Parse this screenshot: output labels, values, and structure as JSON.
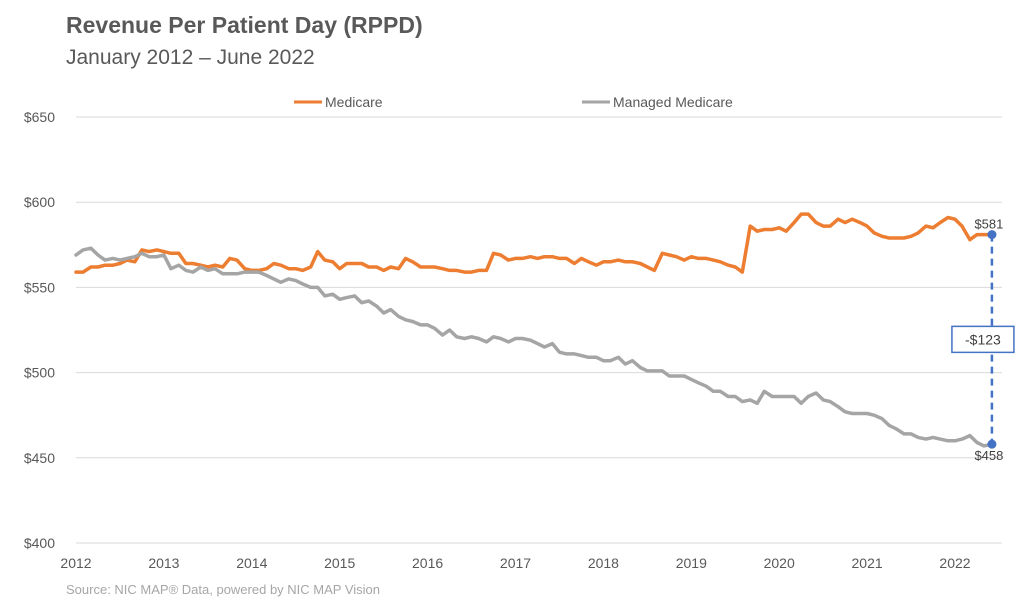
{
  "header": {
    "title": "Revenue Per Patient Day (RPPD)",
    "subtitle": "January 2012 – June 2022"
  },
  "footer": {
    "source": "Source: NIC MAP® Data, powered by NIC MAP Vision"
  },
  "colors": {
    "medicare": "#ed7d31",
    "managed_medicare": "#a5a5a5",
    "annotation": "#4472c4",
    "gridline": "#d9d9d9"
  },
  "chart_data": {
    "type": "line",
    "xlim": [
      2012,
      2022.5
    ],
    "ylim": [
      400,
      650
    ],
    "x_ticks": [
      2012,
      2013,
      2014,
      2015,
      2016,
      2017,
      2018,
      2019,
      2020,
      2021,
      2022
    ],
    "x_tick_labels": [
      "2012",
      "2013",
      "2014",
      "2015",
      "2016",
      "2017",
      "2018",
      "2019",
      "2020",
      "2021",
      "2022"
    ],
    "y_ticks": [
      400,
      450,
      500,
      550,
      600,
      650
    ],
    "y_tick_labels": [
      "$400",
      "$450",
      "$500",
      "$550",
      "$600",
      "$650"
    ],
    "grid": "horizontal",
    "legend_position": "top",
    "series": [
      {
        "name": "Medicare",
        "points": [
          [
            2012.0,
            559
          ],
          [
            2012.08,
            559
          ],
          [
            2012.17,
            562
          ],
          [
            2012.25,
            562
          ],
          [
            2012.33,
            563
          ],
          [
            2012.42,
            563
          ],
          [
            2012.5,
            564
          ],
          [
            2012.58,
            566
          ],
          [
            2012.67,
            565
          ],
          [
            2012.75,
            572
          ],
          [
            2012.83,
            571
          ],
          [
            2012.92,
            572
          ],
          [
            2013.0,
            571
          ],
          [
            2013.08,
            570
          ],
          [
            2013.17,
            570
          ],
          [
            2013.25,
            564
          ],
          [
            2013.33,
            564
          ],
          [
            2013.42,
            563
          ],
          [
            2013.5,
            562
          ],
          [
            2013.58,
            563
          ],
          [
            2013.67,
            562
          ],
          [
            2013.75,
            567
          ],
          [
            2013.83,
            566
          ],
          [
            2013.92,
            561
          ],
          [
            2014.0,
            560
          ],
          [
            2014.08,
            560
          ],
          [
            2014.17,
            561
          ],
          [
            2014.25,
            564
          ],
          [
            2014.33,
            563
          ],
          [
            2014.42,
            561
          ],
          [
            2014.5,
            561
          ],
          [
            2014.58,
            560
          ],
          [
            2014.67,
            562
          ],
          [
            2014.75,
            571
          ],
          [
            2014.83,
            566
          ],
          [
            2014.92,
            565
          ],
          [
            2015.0,
            561
          ],
          [
            2015.08,
            564
          ],
          [
            2015.17,
            564
          ],
          [
            2015.25,
            564
          ],
          [
            2015.33,
            562
          ],
          [
            2015.42,
            562
          ],
          [
            2015.5,
            560
          ],
          [
            2015.58,
            562
          ],
          [
            2015.67,
            561
          ],
          [
            2015.75,
            567
          ],
          [
            2015.83,
            565
          ],
          [
            2015.92,
            562
          ],
          [
            2016.0,
            562
          ],
          [
            2016.08,
            562
          ],
          [
            2016.17,
            561
          ],
          [
            2016.25,
            560
          ],
          [
            2016.33,
            560
          ],
          [
            2016.42,
            559
          ],
          [
            2016.5,
            559
          ],
          [
            2016.58,
            560
          ],
          [
            2016.67,
            560
          ],
          [
            2016.75,
            570
          ],
          [
            2016.83,
            569
          ],
          [
            2016.92,
            566
          ],
          [
            2017.0,
            567
          ],
          [
            2017.08,
            567
          ],
          [
            2017.17,
            568
          ],
          [
            2017.25,
            567
          ],
          [
            2017.33,
            568
          ],
          [
            2017.42,
            568
          ],
          [
            2017.5,
            567
          ],
          [
            2017.58,
            567
          ],
          [
            2017.67,
            564
          ],
          [
            2017.75,
            567
          ],
          [
            2017.83,
            565
          ],
          [
            2017.92,
            563
          ],
          [
            2018.0,
            565
          ],
          [
            2018.08,
            565
          ],
          [
            2018.17,
            566
          ],
          [
            2018.25,
            565
          ],
          [
            2018.33,
            565
          ],
          [
            2018.42,
            564
          ],
          [
            2018.5,
            562
          ],
          [
            2018.58,
            560
          ],
          [
            2018.67,
            570
          ],
          [
            2018.75,
            569
          ],
          [
            2018.83,
            568
          ],
          [
            2018.92,
            566
          ],
          [
            2019.0,
            568
          ],
          [
            2019.08,
            567
          ],
          [
            2019.17,
            567
          ],
          [
            2019.25,
            566
          ],
          [
            2019.33,
            565
          ],
          [
            2019.42,
            563
          ],
          [
            2019.5,
            562
          ],
          [
            2019.58,
            559
          ],
          [
            2019.67,
            586
          ],
          [
            2019.75,
            583
          ],
          [
            2019.83,
            584
          ],
          [
            2019.92,
            584
          ],
          [
            2020.0,
            585
          ],
          [
            2020.08,
            583
          ],
          [
            2020.17,
            588
          ],
          [
            2020.25,
            593
          ],
          [
            2020.33,
            593
          ],
          [
            2020.42,
            588
          ],
          [
            2020.5,
            586
          ],
          [
            2020.58,
            586
          ],
          [
            2020.67,
            590
          ],
          [
            2020.75,
            588
          ],
          [
            2020.83,
            590
          ],
          [
            2020.92,
            588
          ],
          [
            2021.0,
            586
          ],
          [
            2021.08,
            582
          ],
          [
            2021.17,
            580
          ],
          [
            2021.25,
            579
          ],
          [
            2021.33,
            579
          ],
          [
            2021.42,
            579
          ],
          [
            2021.5,
            580
          ],
          [
            2021.58,
            582
          ],
          [
            2021.67,
            586
          ],
          [
            2021.75,
            585
          ],
          [
            2021.83,
            588
          ],
          [
            2021.92,
            591
          ],
          [
            2022.0,
            590
          ],
          [
            2022.08,
            586
          ],
          [
            2022.17,
            578
          ],
          [
            2022.25,
            581
          ],
          [
            2022.42,
            581
          ]
        ]
      },
      {
        "name": "Managed Medicare",
        "points": [
          [
            2012.0,
            569
          ],
          [
            2012.08,
            572
          ],
          [
            2012.17,
            573
          ],
          [
            2012.25,
            569
          ],
          [
            2012.33,
            566
          ],
          [
            2012.42,
            567
          ],
          [
            2012.5,
            566
          ],
          [
            2012.58,
            567
          ],
          [
            2012.67,
            568
          ],
          [
            2012.75,
            570
          ],
          [
            2012.83,
            568
          ],
          [
            2012.92,
            568
          ],
          [
            2013.0,
            569
          ],
          [
            2013.08,
            561
          ],
          [
            2013.17,
            563
          ],
          [
            2013.25,
            560
          ],
          [
            2013.33,
            559
          ],
          [
            2013.42,
            562
          ],
          [
            2013.5,
            560
          ],
          [
            2013.58,
            561
          ],
          [
            2013.67,
            558
          ],
          [
            2013.75,
            558
          ],
          [
            2013.83,
            558
          ],
          [
            2013.92,
            559
          ],
          [
            2014.0,
            559
          ],
          [
            2014.08,
            559
          ],
          [
            2014.17,
            557
          ],
          [
            2014.25,
            555
          ],
          [
            2014.33,
            553
          ],
          [
            2014.42,
            555
          ],
          [
            2014.5,
            554
          ],
          [
            2014.58,
            552
          ],
          [
            2014.67,
            550
          ],
          [
            2014.75,
            550
          ],
          [
            2014.83,
            545
          ],
          [
            2014.92,
            546
          ],
          [
            2015.0,
            543
          ],
          [
            2015.08,
            544
          ],
          [
            2015.17,
            545
          ],
          [
            2015.25,
            541
          ],
          [
            2015.33,
            542
          ],
          [
            2015.42,
            539
          ],
          [
            2015.5,
            535
          ],
          [
            2015.58,
            537
          ],
          [
            2015.67,
            533
          ],
          [
            2015.75,
            531
          ],
          [
            2015.83,
            530
          ],
          [
            2015.92,
            528
          ],
          [
            2016.0,
            528
          ],
          [
            2016.08,
            526
          ],
          [
            2016.17,
            522
          ],
          [
            2016.25,
            525
          ],
          [
            2016.33,
            521
          ],
          [
            2016.42,
            520
          ],
          [
            2016.5,
            521
          ],
          [
            2016.58,
            520
          ],
          [
            2016.67,
            518
          ],
          [
            2016.75,
            521
          ],
          [
            2016.83,
            520
          ],
          [
            2016.92,
            518
          ],
          [
            2017.0,
            520
          ],
          [
            2017.08,
            520
          ],
          [
            2017.17,
            519
          ],
          [
            2017.25,
            517
          ],
          [
            2017.33,
            515
          ],
          [
            2017.42,
            517
          ],
          [
            2017.5,
            512
          ],
          [
            2017.58,
            511
          ],
          [
            2017.67,
            511
          ],
          [
            2017.75,
            510
          ],
          [
            2017.83,
            509
          ],
          [
            2017.92,
            509
          ],
          [
            2018.0,
            507
          ],
          [
            2018.08,
            507
          ],
          [
            2018.17,
            509
          ],
          [
            2018.25,
            505
          ],
          [
            2018.33,
            507
          ],
          [
            2018.42,
            503
          ],
          [
            2018.5,
            501
          ],
          [
            2018.58,
            501
          ],
          [
            2018.67,
            501
          ],
          [
            2018.75,
            498
          ],
          [
            2018.83,
            498
          ],
          [
            2018.92,
            498
          ],
          [
            2019.0,
            496
          ],
          [
            2019.08,
            494
          ],
          [
            2019.17,
            492
          ],
          [
            2019.25,
            489
          ],
          [
            2019.33,
            489
          ],
          [
            2019.42,
            486
          ],
          [
            2019.5,
            486
          ],
          [
            2019.58,
            483
          ],
          [
            2019.67,
            484
          ],
          [
            2019.75,
            482
          ],
          [
            2019.83,
            489
          ],
          [
            2019.92,
            486
          ],
          [
            2020.0,
            486
          ],
          [
            2020.08,
            486
          ],
          [
            2020.17,
            486
          ],
          [
            2020.25,
            482
          ],
          [
            2020.33,
            486
          ],
          [
            2020.42,
            488
          ],
          [
            2020.5,
            484
          ],
          [
            2020.58,
            483
          ],
          [
            2020.67,
            480
          ],
          [
            2020.75,
            477
          ],
          [
            2020.83,
            476
          ],
          [
            2020.92,
            476
          ],
          [
            2021.0,
            476
          ],
          [
            2021.08,
            475
          ],
          [
            2021.17,
            473
          ],
          [
            2021.25,
            469
          ],
          [
            2021.33,
            467
          ],
          [
            2021.42,
            464
          ],
          [
            2021.5,
            464
          ],
          [
            2021.58,
            462
          ],
          [
            2021.67,
            461
          ],
          [
            2021.75,
            462
          ],
          [
            2021.83,
            461
          ],
          [
            2021.92,
            460
          ],
          [
            2022.0,
            460
          ],
          [
            2022.08,
            461
          ],
          [
            2022.17,
            463
          ],
          [
            2022.25,
            459
          ],
          [
            2022.33,
            457
          ],
          [
            2022.42,
            458
          ]
        ]
      }
    ],
    "annotations": {
      "medicare_end_label": "$581",
      "managed_end_label": "$458",
      "difference_label": "-$123"
    }
  }
}
